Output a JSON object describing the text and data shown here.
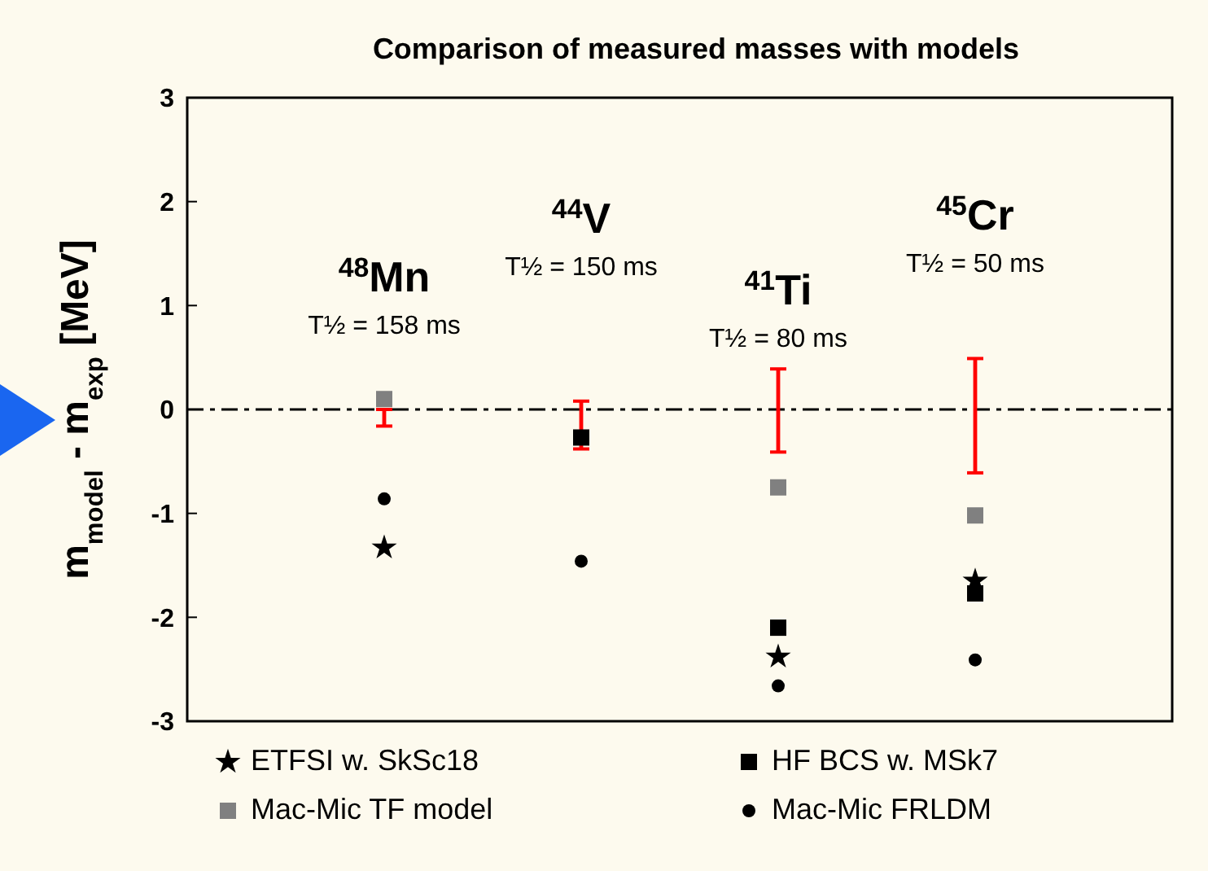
{
  "chart_data": {
    "type": "scatter",
    "title": "Comparison of measured masses with models",
    "ylabel": "m$_{model}$ - m$_{exp}$ [MeV]",
    "categories": [
      "$^{48}$Mn",
      "$^{44}$V",
      "$^{41}$Ti",
      "$^{45}$Cr"
    ],
    "ylim": [
      -3,
      3
    ],
    "yticks": [
      -3,
      -2,
      -1,
      0,
      1,
      2,
      3
    ],
    "tick_labels": "y",
    "grid": false,
    "legend": "bottom",
    "ref_lines": [
      {
        "axis": "y",
        "value": 0,
        "color": "#000000",
        "line_style": "dashed"
      }
    ],
    "annotations": [
      "T½ = 158 ms",
      "T½ = 150 ms",
      "T½ = 80 ms",
      "T½ = 50 ms"
    ],
    "series": [
      {
        "type": "bar",
        "color": "#ff0000",
        "base": [
          -0.16,
          -0.38,
          -0.41,
          -0.61
        ],
        "values": [
          0.16,
          0.46,
          0.8,
          1.1
        ]
      },
      {
        "name": "ETFSI w. SkSc18",
        "color": "#000000",
        "marker": "star",
        "values": [
          -1.33,
          null,
          -2.38,
          -1.65
        ]
      },
      {
        "name": "Mac-Mic TF model",
        "color": "#808080",
        "marker": "square",
        "values": [
          0.1,
          null,
          -0.75,
          -1.02
        ]
      },
      {
        "name": "HF BCS w. MSk7",
        "color": "#000000",
        "marker": "square",
        "values": [
          null,
          -0.27,
          -2.1,
          -1.77
        ]
      },
      {
        "name": "Mac-Mic FRLDM",
        "color": "#000000",
        "marker": "circle",
        "values": [
          -0.86,
          -1.46,
          -2.66,
          -2.41
        ]
      }
    ]
  }
}
